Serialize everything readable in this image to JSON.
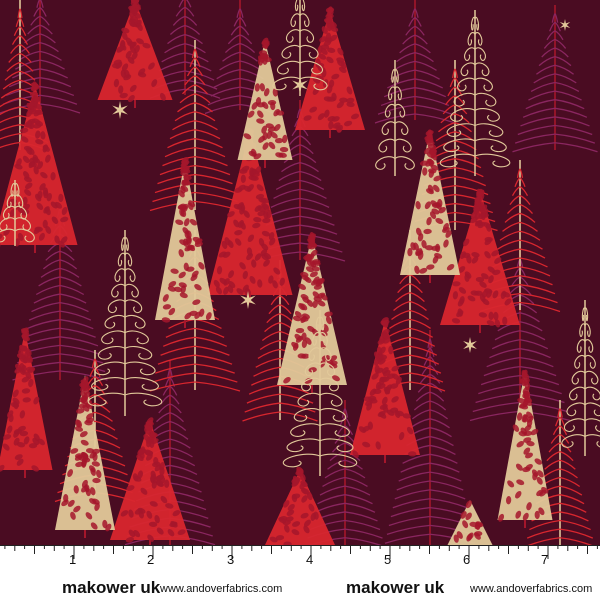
{
  "colors": {
    "background": "#4a0c22",
    "red": "#d8262e",
    "crimson": "#a5162b",
    "purple": "#8a2660",
    "gold": "#e2c99a",
    "selvage": "#ffffff"
  },
  "selvage": {
    "ruler_numbers": [
      "1",
      "2",
      "3",
      "4",
      "5",
      "6",
      "7"
    ],
    "brand_left": "makower uk",
    "site_left": "www.andoverfabrics.com",
    "brand_right": "makower uk",
    "site_right": "www.andoverfabrics.com"
  }
}
